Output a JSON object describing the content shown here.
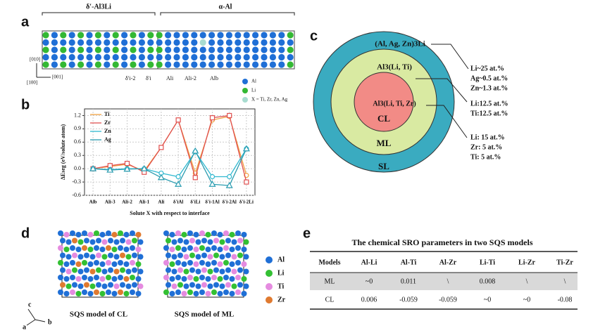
{
  "panel_labels": [
    "a",
    "b",
    "c",
    "d",
    "e"
  ],
  "panel_a": {
    "phase_left": "δ′-Al3Li",
    "phase_right": "α-Al",
    "axis_labels": [
      "[010]",
      "[100]",
      "[001]"
    ],
    "site_labels": [
      "δ′i-2",
      "δ′i",
      "Ali",
      "Ali-2",
      "Alb"
    ],
    "legend": [
      "Al",
      "Li",
      "X = Ti, Zr, Zn, Ag"
    ]
  },
  "chart_data": {
    "type": "line",
    "ylabel": "ΔEseg (eV/solute atom)",
    "xlabel": "Solute X with respect to interface",
    "categories": [
      "Alb",
      "Ali-3",
      "Ali-2",
      "Ali-1",
      "Ali",
      "δ′iAl",
      "δ′iLi",
      "δ′i-1Al",
      "δ′i-2Al",
      "δ′i-2Li"
    ],
    "series": [
      {
        "name": "Ti",
        "color": "#f0a040",
        "marker": "circle",
        "values": [
          0,
          0.05,
          0.1,
          -0.05,
          0.48,
          1.1,
          -0.1,
          1.1,
          1.18,
          -0.15
        ]
      },
      {
        "name": "Zr",
        "color": "#e05050",
        "marker": "square",
        "values": [
          0,
          0.07,
          0.12,
          -0.08,
          0.48,
          1.1,
          -0.2,
          1.15,
          1.2,
          -0.3
        ]
      },
      {
        "name": "Zn",
        "color": "#30b8d0",
        "marker": "circle",
        "values": [
          0,
          -0.02,
          0,
          0,
          -0.1,
          -0.18,
          0.38,
          -0.18,
          -0.18,
          0.45
        ]
      },
      {
        "name": "Ag",
        "color": "#2a9cb0",
        "marker": "triangle",
        "values": [
          0,
          -0.03,
          -0.01,
          0,
          -0.2,
          -0.35,
          0.4,
          -0.35,
          -0.38,
          0.45
        ]
      }
    ],
    "ylim": [
      -0.6,
      1.35
    ],
    "yticks": [
      -0.6,
      -0.3,
      {
        "value": 0,
        "label": "0.0"
      },
      0.3,
      0.6,
      0.9,
      1.2
    ],
    "legend": "upper left",
    "grid": true
  },
  "panel_c": {
    "shells": [
      {
        "formula": "(Al, Ag, Zn)3Li",
        "name": "SL",
        "composition": [
          "Li~25 at.%",
          "Ag~0.5 at.%",
          "Zn~1.3 at.%"
        ]
      },
      {
        "formula": "Al3(Li, Ti)",
        "name": "ML",
        "composition": [
          "Li:12.5 at.%",
          "Ti:12.5 at.%"
        ]
      },
      {
        "formula": "Al3(Li, Ti, Zr)",
        "name": "CL",
        "composition": [
          "Li: 15 at.%",
          "Zr: 5 at.%",
          "Ti: 5 at.%"
        ]
      }
    ]
  },
  "panel_d": {
    "captions": [
      "SQS model of CL",
      "SQS model of ML"
    ],
    "axes": [
      "c",
      "a",
      "b"
    ],
    "legend": [
      "Al",
      "Li",
      "Ti",
      "Zr"
    ]
  },
  "table": {
    "title": "The chemical SRO parameters in two SQS models",
    "header": [
      "Models",
      "Al-Li",
      "Al-Ti",
      "Al-Zr",
      "Li-Ti",
      "Li-Zr",
      "Ti-Zr"
    ],
    "rows": [
      [
        "ML",
        "~0",
        "0.011",
        "\\",
        "0.008",
        "\\",
        "\\"
      ],
      [
        "CL",
        "0.006",
        "-0.059",
        "-0.059",
        "~0",
        "~0",
        "-0.08"
      ]
    ]
  }
}
